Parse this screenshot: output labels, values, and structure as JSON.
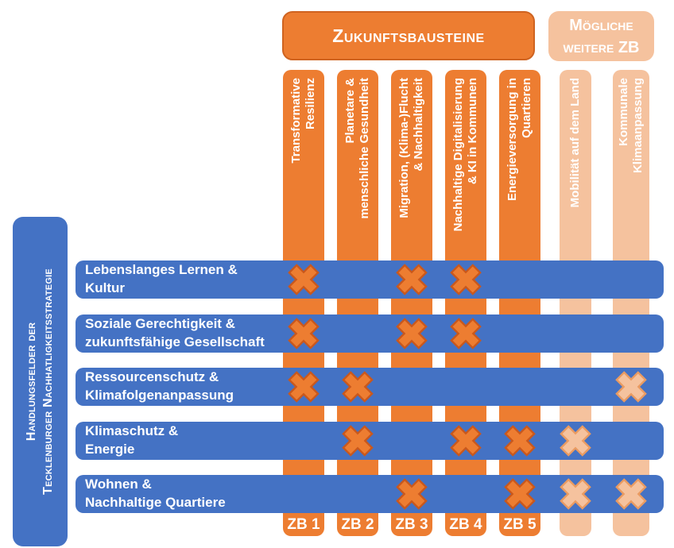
{
  "colors": {
    "orange": "#ED7D31",
    "orange_border": "#C9581D",
    "orange_light": "#F5C29E",
    "orange_light_border": "#EA9B61",
    "blue": "#4472C4",
    "text": "#FFFFFF"
  },
  "legend": {
    "zukunftsbausteine": "Zukunftsbausteine",
    "moegliche_weitere_zb_lines": [
      "Mögliche",
      "weitere ZB"
    ]
  },
  "sidebar": {
    "lines": [
      "Handlungsfelder der",
      "Tecklenburger Nachhatligkeitsstrategie"
    ]
  },
  "columns": [
    {
      "type": "zb",
      "tag": "ZB 1",
      "label_lines": [
        "Transformative",
        "Resilienz"
      ]
    },
    {
      "type": "zb",
      "tag": "ZB 2",
      "label_lines": [
        "Planetare &",
        "menschliche Gesundheit"
      ]
    },
    {
      "type": "zb",
      "tag": "ZB 3",
      "label_lines": [
        "Migration, (Klima-)Flucht",
        "& Nachhaltigkeit"
      ]
    },
    {
      "type": "zb",
      "tag": "ZB 4",
      "label_lines": [
        "Nachhaltige Digitalisierung",
        "& KI in Kommunen"
      ]
    },
    {
      "type": "zb",
      "tag": "ZB 5",
      "label_lines": [
        "Energieversorgung in",
        "Quartieren"
      ]
    },
    {
      "type": "possible",
      "tag": "",
      "label_lines": [
        "Mobilität auf dem Land"
      ]
    },
    {
      "type": "possible",
      "tag": "",
      "label_lines": [
        "Kommunale",
        "Klimaanpassung"
      ]
    }
  ],
  "rows": [
    {
      "label_lines": [
        "Lebenslanges Lernen &",
        "Kultur"
      ],
      "marked_columns": [
        1,
        3,
        4
      ]
    },
    {
      "label_lines": [
        "Soziale Gerechtigkeit &",
        "zukunftsfähige Gesellschaft"
      ],
      "marked_columns": [
        1,
        3,
        4
      ]
    },
    {
      "label_lines": [
        "Ressourcenschutz &",
        "Klimafolgenanpassung"
      ],
      "marked_columns": [
        1,
        2,
        7
      ]
    },
    {
      "label_lines": [
        "Klimaschutz &",
        "Energie"
      ],
      "marked_columns": [
        2,
        4,
        5,
        6
      ]
    },
    {
      "label_lines": [
        "Wohnen &",
        "Nachhaltige Quartiere"
      ],
      "marked_columns": [
        3,
        5,
        6,
        7
      ]
    }
  ]
}
